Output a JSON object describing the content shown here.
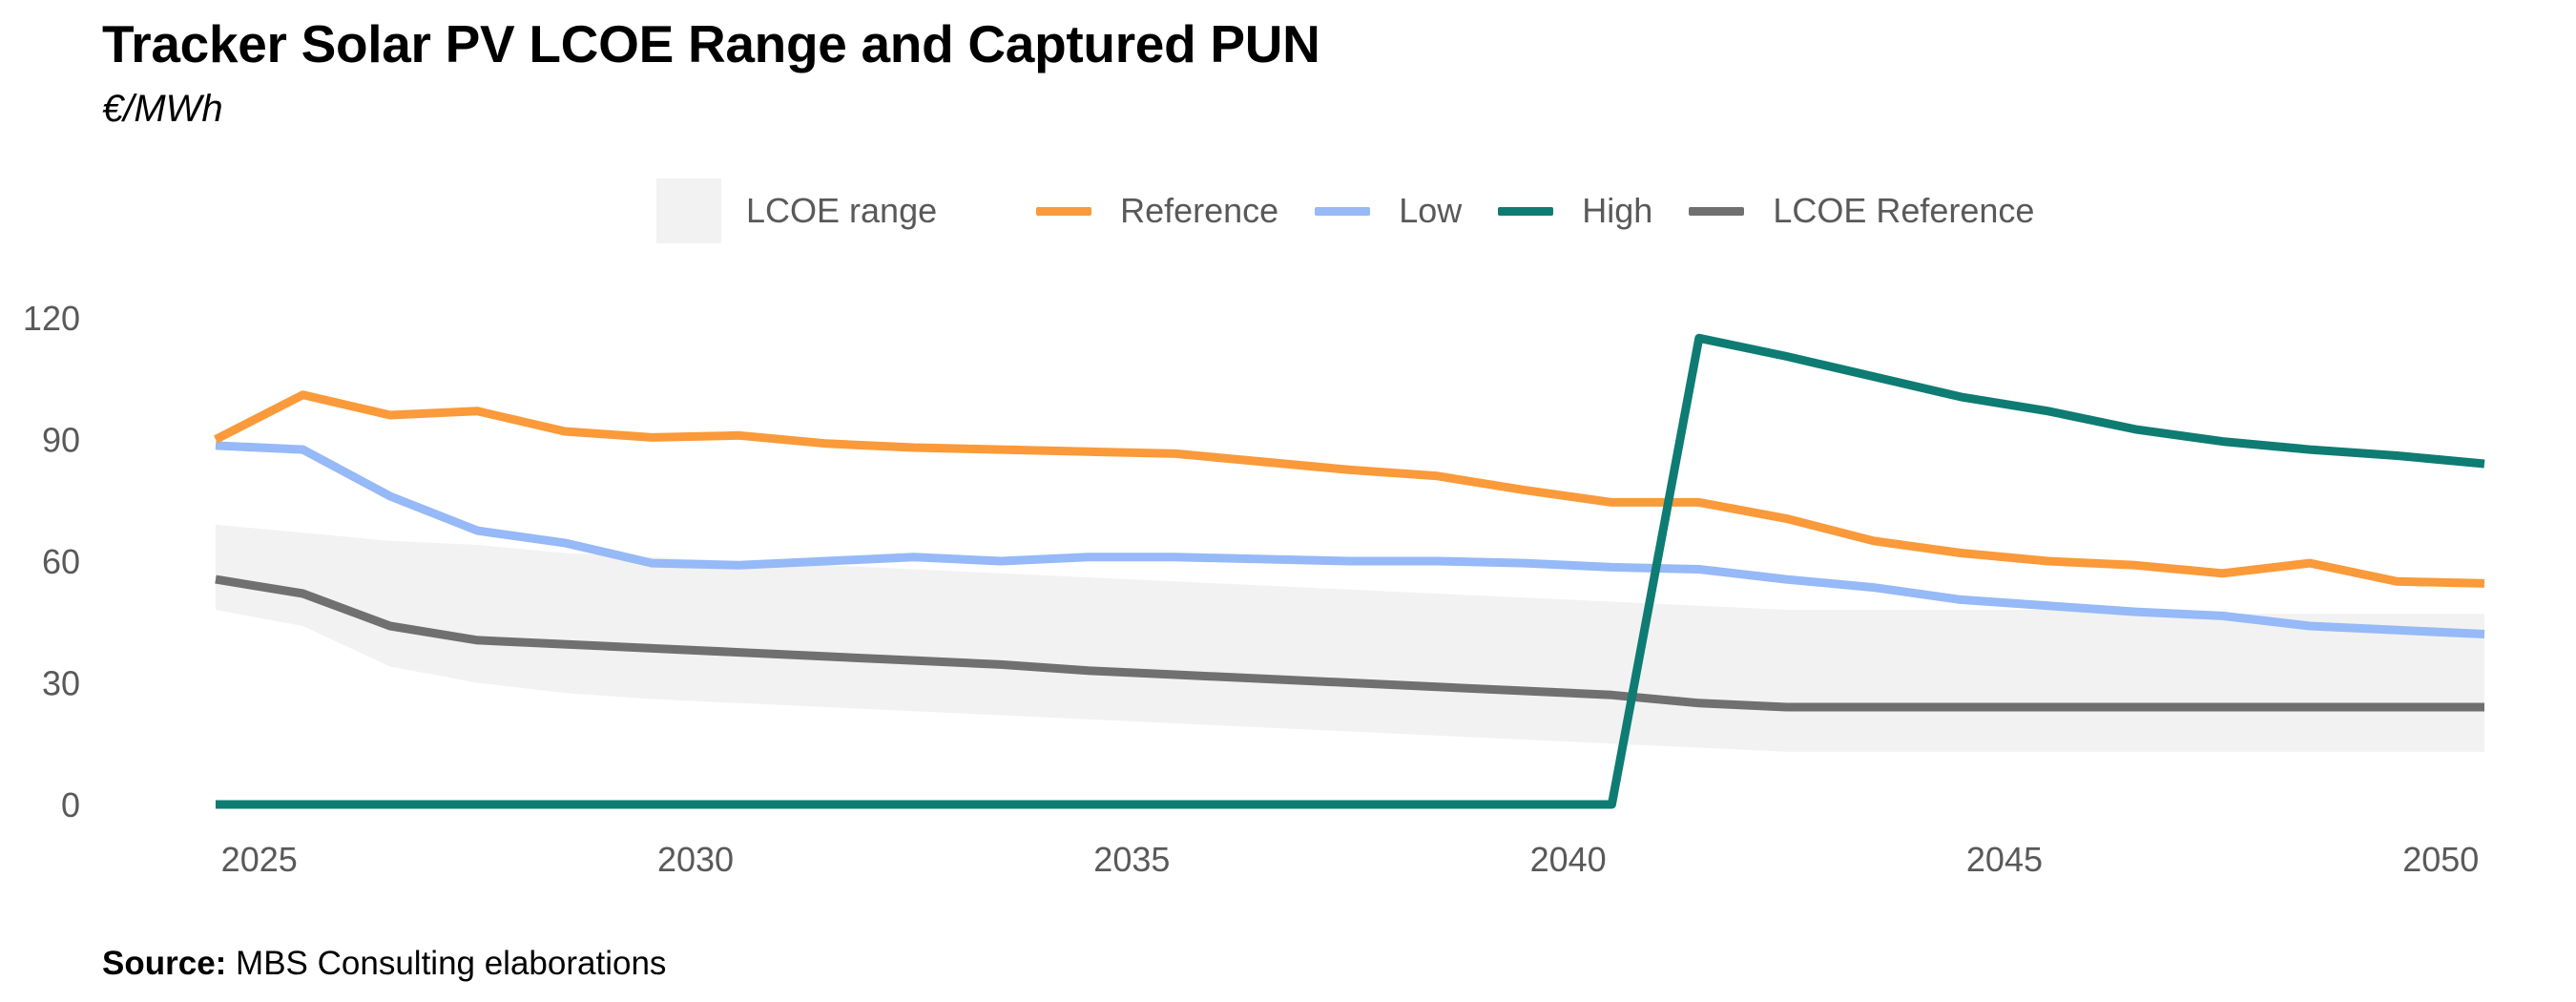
{
  "title": "Tracker Solar PV LCOE Range and Captured PUN",
  "subtitle": "€/MWh",
  "source_label": "Source:",
  "source_text": "MBS Consulting elaborations",
  "colors": {
    "reference": "#fa9a3a",
    "low": "#96b9f7",
    "high": "#0e7c72",
    "lcoe_reference": "#707070",
    "lcoe_range": "#f2f2f2",
    "axis_text": "#595959"
  },
  "chart_data": {
    "type": "line",
    "title": "Tracker Solar PV LCOE Range and Captured PUN",
    "ylabel": "€/MWh",
    "xlabel": "",
    "ylim": [
      0,
      120
    ],
    "yticks": [
      0,
      30,
      60,
      90,
      120
    ],
    "xticks": [
      2025,
      2030,
      2035,
      2040,
      2045,
      2050
    ],
    "grid": false,
    "legend_position": "top",
    "x": [
      2024.5,
      2025.5,
      2026.5,
      2027.5,
      2028.5,
      2029.5,
      2030.5,
      2031.5,
      2032.5,
      2033.5,
      2034.5,
      2035.5,
      2036.5,
      2037.5,
      2038.5,
      2039.5,
      2040.5,
      2041.5,
      2042.5,
      2043.5,
      2044.5,
      2045.5,
      2046.5,
      2047.5,
      2048.5,
      2049.5,
      2050.5
    ],
    "range": {
      "name": "LCOE range",
      "upper": [
        69,
        67,
        65,
        64,
        62,
        61,
        60,
        59,
        58,
        57,
        56,
        55,
        54,
        53,
        52,
        51,
        50,
        49,
        48,
        48,
        48,
        48,
        48,
        47,
        47,
        47,
        47
      ],
      "lower": [
        48,
        44,
        34,
        30,
        27.5,
        26,
        25,
        24,
        23,
        22,
        21,
        20,
        19,
        18,
        17,
        16,
        15,
        14,
        13,
        13,
        13,
        13,
        13,
        13,
        13,
        13,
        13
      ]
    },
    "series": [
      {
        "name": "Reference",
        "values": [
          90,
          101,
          96,
          97,
          92,
          90.5,
          91,
          89,
          88,
          87.5,
          87,
          86.5,
          84.5,
          82.5,
          81,
          77.5,
          74.5,
          74.5,
          70.5,
          65,
          62,
          60,
          59,
          57,
          59.5,
          55,
          54.5
        ]
      },
      {
        "name": "Low",
        "values": [
          88.5,
          87.5,
          76,
          67.5,
          64.5,
          59.5,
          59,
          60,
          61,
          60,
          61,
          61,
          60.5,
          60,
          60,
          59.5,
          58.5,
          58,
          55.5,
          53.5,
          50.5,
          49,
          47.5,
          46.5,
          44,
          43,
          42
        ]
      },
      {
        "name": "High",
        "values": [
          0,
          0,
          0,
          0,
          0,
          0,
          0,
          0,
          0,
          0,
          0,
          0,
          0,
          0,
          0,
          0,
          0,
          115,
          110.5,
          105.5,
          100.5,
          97,
          92.5,
          89.5,
          87.5,
          86,
          84
        ]
      },
      {
        "name": "LCOE Reference",
        "values": [
          55.5,
          52,
          44,
          40.5,
          39.5,
          38.5,
          37.5,
          36.5,
          35.5,
          34.5,
          33,
          32,
          31,
          30,
          29,
          28,
          27,
          25,
          24,
          24,
          24,
          24,
          24,
          24,
          24,
          24,
          24
        ]
      }
    ]
  }
}
